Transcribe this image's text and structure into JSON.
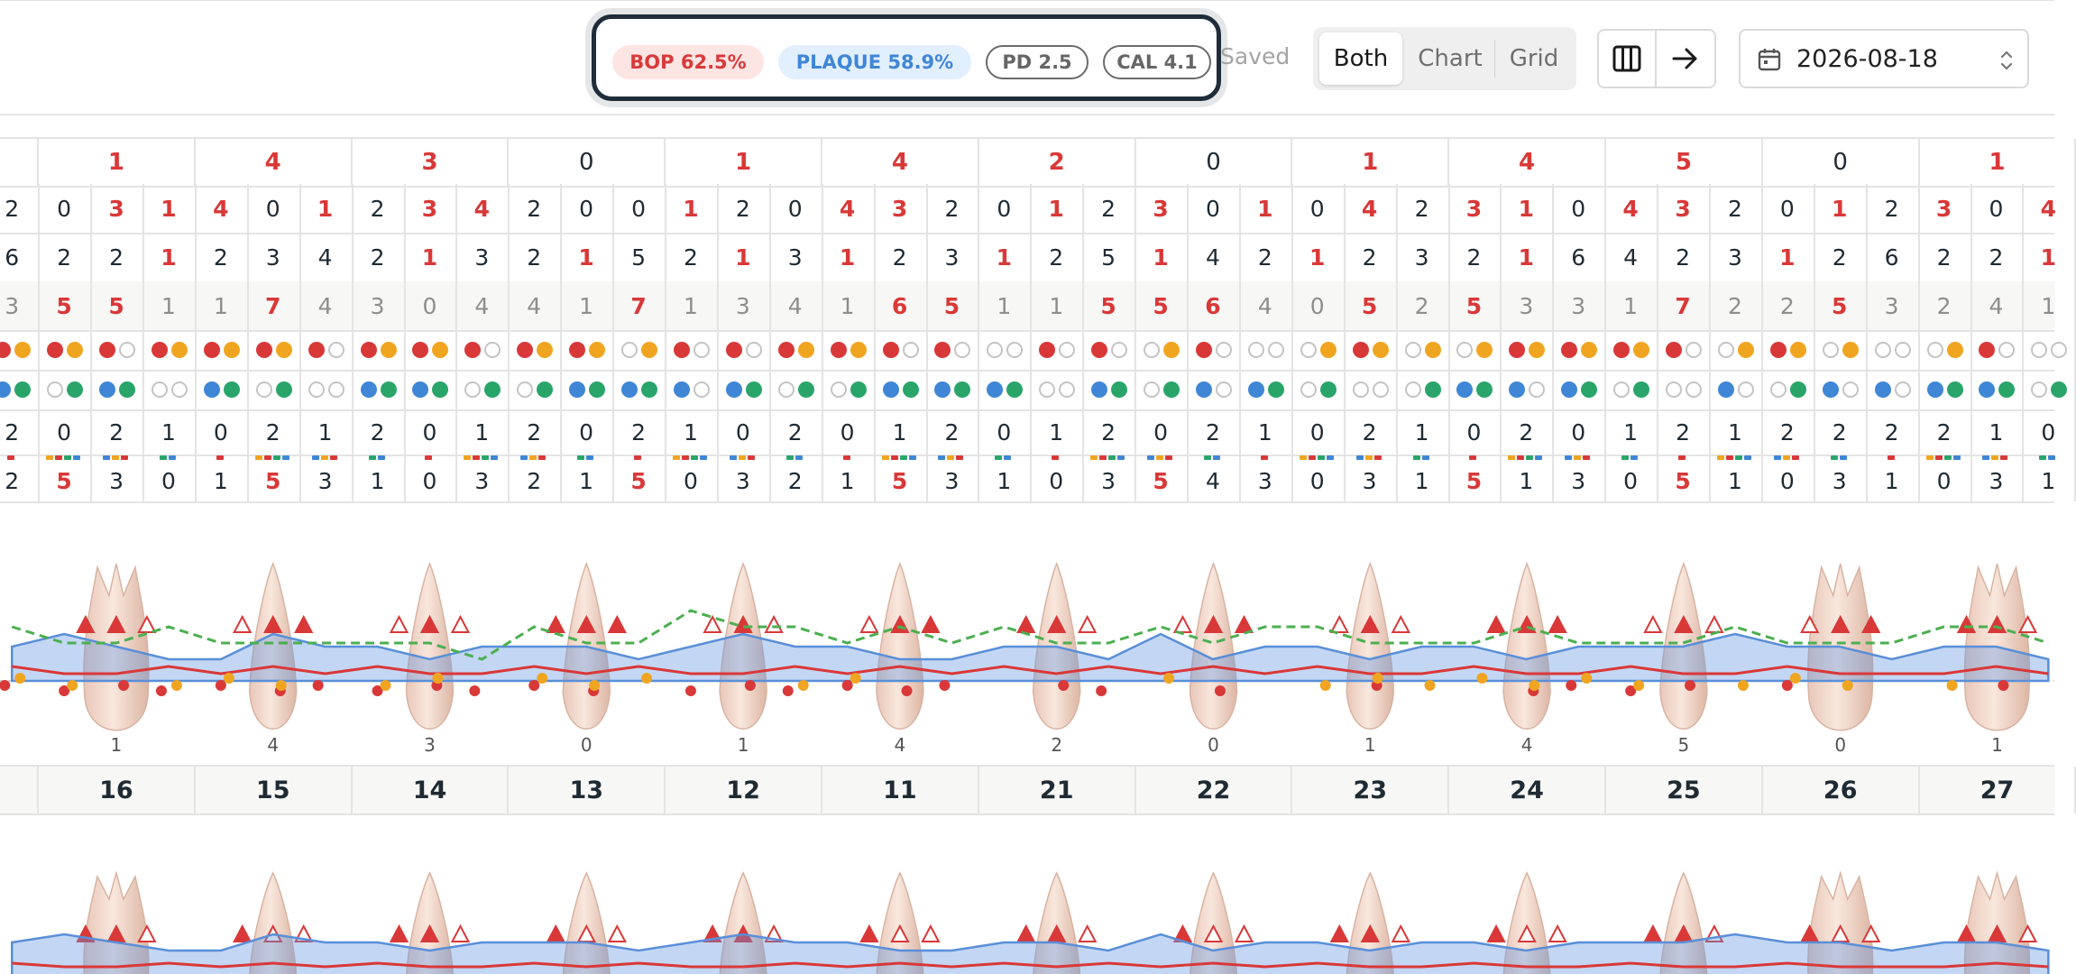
{
  "toolbar": {
    "bop": "BOP 62.5%",
    "plaque": "PLAQUE 58.9%",
    "pd": "PD 2.5",
    "cal": "CAL 4.1",
    "saved": "Saved",
    "views": [
      "Both",
      "Chart",
      "Grid"
    ],
    "active_view": "Both",
    "date": "2026-08-18"
  },
  "colors": {
    "red": "#d93838",
    "orange": "#f0a521",
    "blue": "#3f86d6",
    "green": "#2aa56a",
    "dark": "#1f2a33"
  },
  "teeth": [
    "16",
    "15",
    "14",
    "13",
    "12",
    "11",
    "21",
    "22",
    "23",
    "24",
    "25",
    "26",
    "27"
  ],
  "mobility": [
    "1",
    "4",
    "3",
    "0",
    "1",
    "4",
    "2",
    "0",
    "1",
    "4",
    "5",
    "0",
    "1"
  ],
  "grid": {
    "pd": [
      "2",
      "0",
      "3",
      "1",
      "4",
      "0",
      "1",
      "2",
      "3",
      "4",
      "2",
      "0",
      "0",
      "1",
      "2",
      "0",
      "4",
      "3",
      "2",
      "0",
      "1",
      "2",
      "3",
      "0",
      "1",
      "0",
      "4",
      "2",
      "3",
      "1",
      "0",
      "4",
      "3",
      "2",
      "0",
      "1",
      "2",
      "3",
      "0",
      "4"
    ],
    "gm": [
      "6",
      "2",
      "2",
      "1",
      "2",
      "3",
      "4",
      "2",
      "1",
      "3",
      "2",
      "1",
      "5",
      "2",
      "1",
      "3",
      "1",
      "2",
      "3",
      "1",
      "2",
      "5",
      "1",
      "4",
      "2",
      "1",
      "2",
      "3",
      "2",
      "1",
      "6",
      "4",
      "2",
      "3",
      "1",
      "2",
      "6",
      "2",
      "2",
      "1"
    ],
    "cal": [
      "3",
      "5",
      "5",
      "1",
      "1",
      "7",
      "4",
      "3",
      "0",
      "4",
      "4",
      "1",
      "7",
      "1",
      "3",
      "4",
      "1",
      "6",
      "5",
      "1",
      "1",
      "5",
      "5",
      "6",
      "4",
      "0",
      "5",
      "2",
      "5",
      "3",
      "3",
      "1",
      "7",
      "2",
      "2",
      "5",
      "3",
      "2",
      "4",
      "1"
    ],
    "bleeding": [
      "2",
      "0",
      "2",
      "1",
      "0",
      "2",
      "1",
      "2",
      "0",
      "1",
      "2",
      "0",
      "2",
      "1",
      "0",
      "2",
      "0",
      "1",
      "2",
      "0",
      "1",
      "2",
      "0",
      "2",
      "1",
      "0",
      "2",
      "1",
      "0",
      "2",
      "0",
      "1",
      "2",
      "1",
      "2",
      "2",
      "2",
      "2",
      "1",
      "0"
    ],
    "furcation": [
      "2",
      "5",
      "3",
      "0",
      "1",
      "5",
      "3",
      "1",
      "0",
      "3",
      "2",
      "1",
      "5",
      "0",
      "3",
      "2",
      "1",
      "5",
      "3",
      "1",
      "0",
      "3",
      "5",
      "4",
      "3",
      "0",
      "3",
      "1",
      "5",
      "1",
      "3",
      "0",
      "5",
      "1",
      "0",
      "3",
      "1",
      "0",
      "3",
      "1"
    ],
    "bop_dots": [
      "ry",
      "ry",
      "rn",
      "ry",
      "ry",
      "ry",
      "rn",
      "ry",
      "ry",
      "rn",
      "ry",
      "ry",
      "ny",
      "rn",
      "rn",
      "ry",
      "ry",
      "rn",
      "rn",
      "nn",
      "rn",
      "rn",
      "ny",
      "rn",
      "nn",
      "ny",
      "ry",
      "ny",
      "ny",
      "ry",
      "ry",
      "ry",
      "rn",
      "ny",
      "ry",
      "ny",
      "nn",
      "ny",
      "rn",
      "nn"
    ],
    "plaque_dots": [
      "bg",
      "ng",
      "bg",
      "nn",
      "bg",
      "ng",
      "nn",
      "bg",
      "bg",
      "ng",
      "ng",
      "bg",
      "bg",
      "bn",
      "bg",
      "ng",
      "ng",
      "bg",
      "bg",
      "bg",
      "nn",
      "bg",
      "ng",
      "bn",
      "bg",
      "ng",
      "nn",
      "ng",
      "bg",
      "bn",
      "bg",
      "ng",
      "nn",
      "bn",
      "ng",
      "bn",
      "bn",
      "bg",
      "bg",
      "ng"
    ]
  },
  "chart": {
    "pd_line": [
      2,
      1,
      1,
      2,
      1,
      2,
      1,
      2,
      1,
      1,
      2,
      1,
      2,
      1,
      1,
      2,
      1,
      2,
      1,
      2,
      1,
      2,
      1,
      2,
      1,
      2,
      1,
      1,
      2,
      1,
      1,
      2,
      1,
      1,
      2,
      1,
      1,
      1,
      2,
      1
    ],
    "cal_line": [
      3,
      4,
      3,
      2,
      2,
      4,
      3,
      3,
      2,
      3,
      3,
      3,
      2,
      3,
      4,
      3,
      3,
      2,
      2,
      3,
      3,
      2,
      4,
      2,
      3,
      3,
      2,
      3,
      3,
      2,
      3,
      3,
      3,
      4,
      3,
      3,
      2,
      3,
      3,
      2
    ],
    "gm_line": [
      3,
      2,
      2,
      3,
      2,
      2,
      2,
      2,
      2,
      1,
      3,
      2,
      2,
      4,
      3,
      3,
      2,
      3,
      2,
      3,
      2,
      2,
      3,
      2,
      3,
      3,
      2,
      2,
      2,
      3,
      2,
      2,
      2,
      3,
      2,
      2,
      2,
      3,
      3,
      2
    ]
  }
}
